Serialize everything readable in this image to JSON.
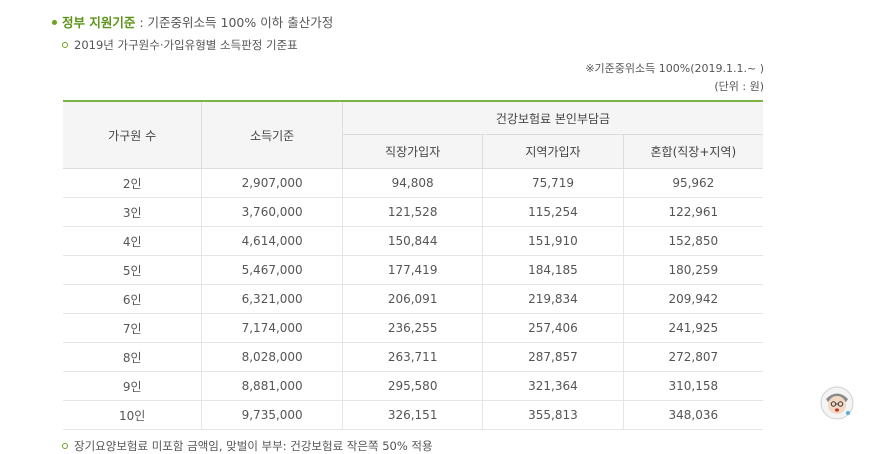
{
  "heading": {
    "title": "정부 지원기준",
    "separator": " : ",
    "text": "기준중위소득 100% 이하 출산가정"
  },
  "subheading": "2019년 가구원수·가입유형별 소득판정 기준표",
  "notes": {
    "basis": "※기준중위소득 100%(2019.1.1.~ )",
    "unit": "(단위 : 원)"
  },
  "table": {
    "headers": {
      "family": "가구원 수",
      "income": "소득기준",
      "group": "건강보험료 본인부담금",
      "workplace": "직장가입자",
      "regional": "지역가입자",
      "mixed": "혼합(직장+지역)"
    },
    "rows": [
      {
        "family": "2인",
        "income": "2,907,000",
        "workplace": "94,808",
        "regional": "75,719",
        "mixed": "95,962"
      },
      {
        "family": "3인",
        "income": "3,760,000",
        "workplace": "121,528",
        "regional": "115,254",
        "mixed": "122,961"
      },
      {
        "family": "4인",
        "income": "4,614,000",
        "workplace": "150,844",
        "regional": "151,910",
        "mixed": "152,850"
      },
      {
        "family": "5인",
        "income": "5,467,000",
        "workplace": "177,419",
        "regional": "184,185",
        "mixed": "180,259"
      },
      {
        "family": "6인",
        "income": "6,321,000",
        "workplace": "206,091",
        "regional": "219,834",
        "mixed": "209,942"
      },
      {
        "family": "7인",
        "income": "7,174,000",
        "workplace": "236,255",
        "regional": "257,406",
        "mixed": "241,925"
      },
      {
        "family": "8인",
        "income": "8,028,000",
        "workplace": "263,711",
        "regional": "287,857",
        "mixed": "272,807"
      },
      {
        "family": "9인",
        "income": "8,881,000",
        "workplace": "295,580",
        "regional": "321,364",
        "mixed": "310,158"
      },
      {
        "family": "10인",
        "income": "9,735,000",
        "workplace": "326,151",
        "regional": "355,813",
        "mixed": "348,036"
      }
    ]
  },
  "footnote": "장기요양보험료 미포함 금액임, 맞벌이 부부: 건강보험료 작은쪽 50% 적용",
  "colors": {
    "accent": "#7cb342",
    "title_green": "#5b9419"
  },
  "icons": {
    "avatar": "user-avatar-icon"
  }
}
